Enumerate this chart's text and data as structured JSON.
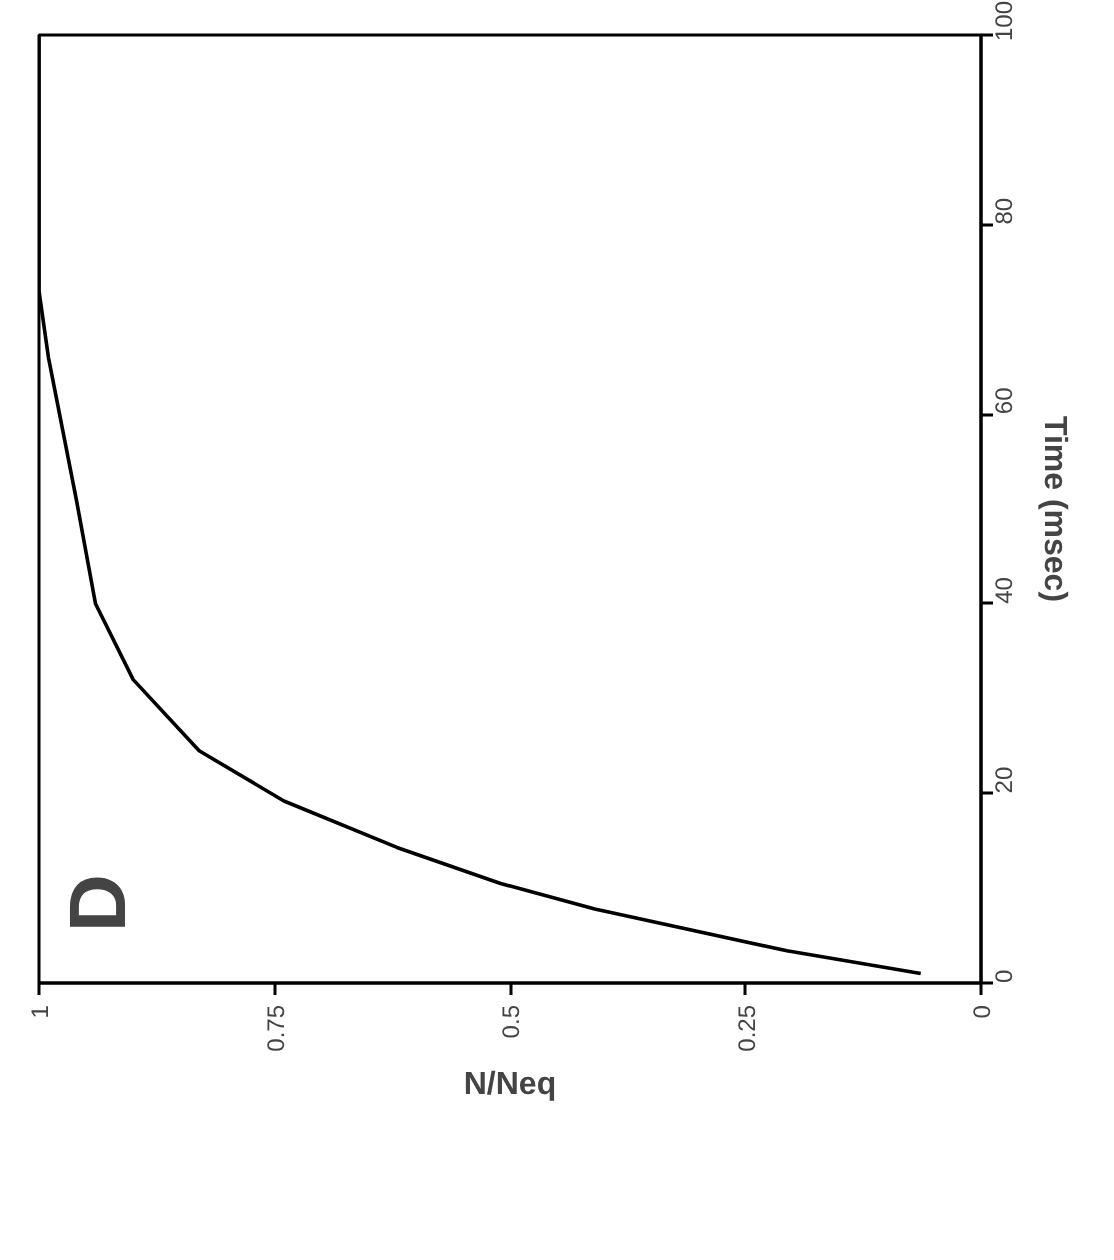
{
  "chart_data": {
    "type": "line",
    "xlabel": "N/Neq",
    "ylabel": "Time (msec)",
    "x": [
      0.064,
      0.206,
      0.41,
      0.51,
      0.62,
      0.74,
      0.83,
      0.9,
      0.94,
      0.96,
      0.99,
      1.0,
      1.0
    ],
    "series": [
      {
        "color": "#000000",
        "values": [
          1,
          3.4,
          7.8,
          10.5,
          14.3,
          19.2,
          24.5,
          32,
          40,
          50.8,
          66,
          73,
          100
        ]
      }
    ],
    "xlim": [
      1,
      0
    ],
    "xticks": [
      1,
      0.75,
      0.5,
      0.25,
      0
    ],
    "ylim": [
      0,
      100
    ],
    "yticks": [
      0,
      20,
      40,
      60,
      80,
      100
    ],
    "grid": false,
    "line_style": "solid",
    "marker": "none",
    "annotations": [
      "D"
    ]
  }
}
